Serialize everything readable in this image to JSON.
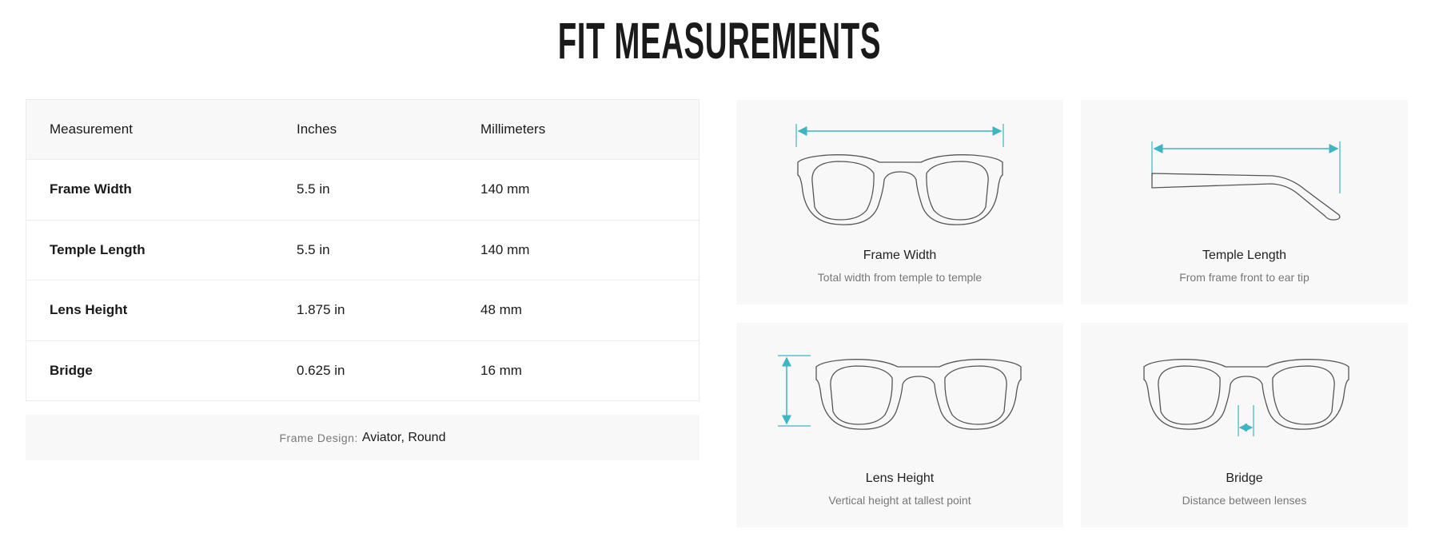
{
  "title": "FIT MEASUREMENTS",
  "table": {
    "headers": [
      "Measurement",
      "Inches",
      "Millimeters"
    ],
    "rows": [
      {
        "name": "Frame Width",
        "inches": "5.5 in",
        "mm": "140 mm"
      },
      {
        "name": "Temple Length",
        "inches": "5.5 in",
        "mm": "140 mm"
      },
      {
        "name": "Lens Height",
        "inches": "1.875 in",
        "mm": "48 mm"
      },
      {
        "name": "Bridge",
        "inches": "0.625 in",
        "mm": "16 mm"
      }
    ]
  },
  "frame_design": {
    "label": "Frame Design:",
    "value": "Aviator, Round"
  },
  "cards": [
    {
      "title": "Frame Width",
      "desc": "Total width from temple to temple",
      "icon": "frame-width-diagram-icon"
    },
    {
      "title": "Temple Length",
      "desc": "From frame front to ear tip",
      "icon": "temple-length-diagram-icon"
    },
    {
      "title": "Lens Height",
      "desc": "Vertical height at tallest point",
      "icon": "lens-height-diagram-icon"
    },
    {
      "title": "Bridge",
      "desc": "Distance between lenses",
      "icon": "bridge-diagram-icon"
    }
  ],
  "colors": {
    "accent": "#3db5c2",
    "card_bg": "#f8f8f8",
    "outline": "#555555"
  }
}
